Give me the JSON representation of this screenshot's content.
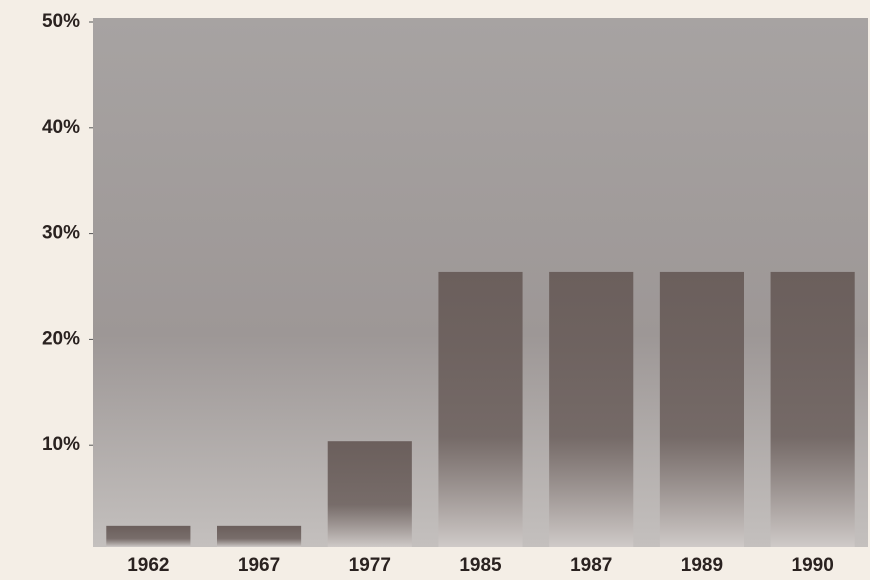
{
  "chart_data": {
    "type": "bar",
    "categories": [
      "1962",
      "1967",
      "1977",
      "1985",
      "1987",
      "1989",
      "1990"
    ],
    "values": [
      2,
      2,
      10,
      26,
      26,
      26,
      26
    ],
    "color": "#6b5f5c",
    "ylim": [
      0,
      50
    ],
    "yticks": [
      {
        "value": 10,
        "label": "10%"
      },
      {
        "value": 20,
        "label": "20%"
      },
      {
        "value": 30,
        "label": "30%"
      },
      {
        "value": 40,
        "label": "40%"
      },
      {
        "value": 50,
        "label": "50%"
      }
    ],
    "grid": false
  }
}
